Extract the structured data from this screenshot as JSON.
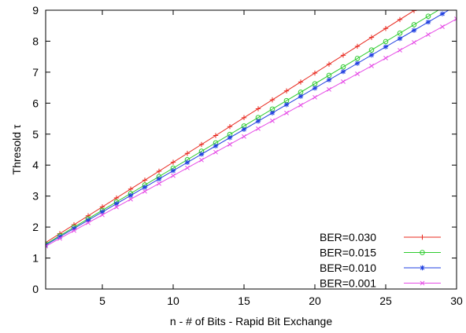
{
  "chart_data": {
    "type": "line",
    "title": "",
    "xlabel": "n - # of Bits - Rapid Bit Exchange",
    "ylabel": "Thresold τ",
    "xlim": [
      1,
      30
    ],
    "ylim": [
      0,
      9
    ],
    "xticks": [
      5,
      10,
      15,
      20,
      25,
      30
    ],
    "yticks": [
      0,
      1,
      2,
      3,
      4,
      5,
      6,
      7,
      8,
      9
    ],
    "grid": false,
    "legend_position": "bottom-right",
    "series": [
      {
        "name": "BER=0.030",
        "color": "#e8281e",
        "marker": "plus",
        "x": [
          1,
          30
        ],
        "y": [
          1.5,
          9.85
        ]
      },
      {
        "name": "BER=0.015",
        "color": "#2ecc2e",
        "marker": "circle",
        "x": [
          1,
          30
        ],
        "y": [
          1.45,
          9.35
        ]
      },
      {
        "name": "BER=0.010",
        "color": "#1f3fe0",
        "marker": "star",
        "x": [
          1,
          30
        ],
        "y": [
          1.42,
          9.15
        ]
      },
      {
        "name": "BER=0.001",
        "color": "#e64be6",
        "marker": "cross",
        "x": [
          1,
          30
        ],
        "y": [
          1.38,
          8.72
        ]
      }
    ]
  }
}
